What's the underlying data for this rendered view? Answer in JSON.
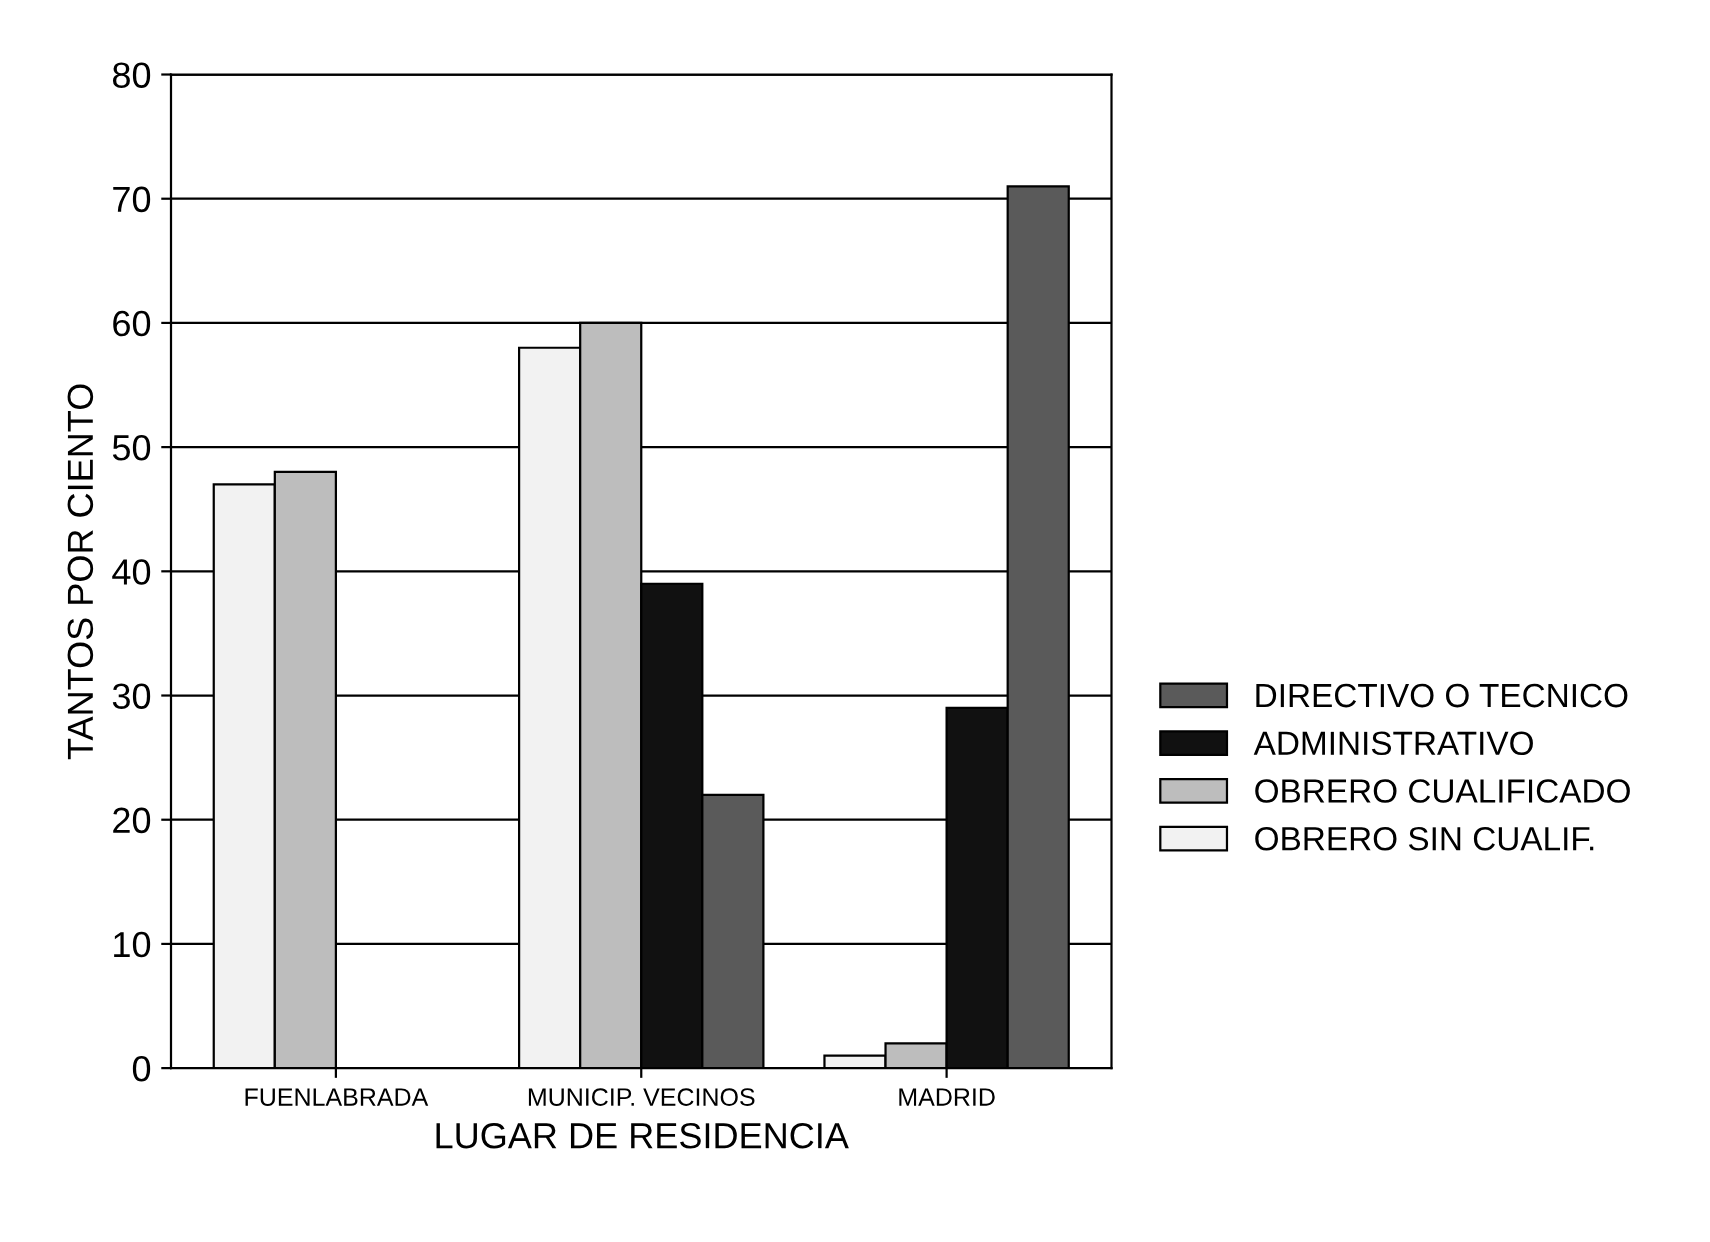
{
  "chart_data": {
    "type": "bar",
    "xlabel": "LUGAR DE RESIDENCIA",
    "ylabel": "TANTOS POR CIENTO",
    "categories": [
      "FUENLABRADA",
      "MUNICIP. VECINOS",
      "MADRID"
    ],
    "series": [
      {
        "name": "OBRERO SIN CUALIF.",
        "color": "#f2f2f2",
        "values": [
          47,
          58,
          1
        ]
      },
      {
        "name": "OBRERO CUALIFICADO",
        "color": "#bdbdbd",
        "values": [
          48,
          60,
          2
        ]
      },
      {
        "name": "ADMINISTRATIVO",
        "color": "#111111",
        "values": [
          null,
          39,
          29
        ]
      },
      {
        "name": "DIRECTIVO O TECNICO",
        "color": "#5a5a5a",
        "values": [
          null,
          22,
          71
        ]
      }
    ],
    "ylim": [
      0,
      80
    ],
    "yticks": [
      0,
      10,
      20,
      30,
      40,
      50,
      60,
      70,
      80
    ],
    "grid": "y",
    "legend": "right"
  }
}
